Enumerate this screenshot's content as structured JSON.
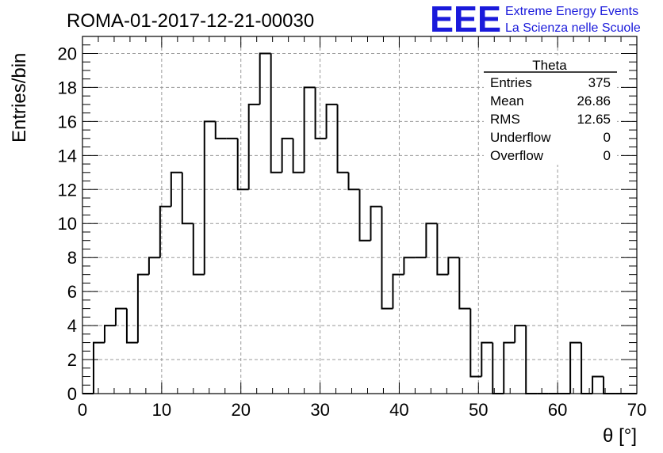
{
  "chart_data": {
    "type": "bar",
    "title": "ROMA-01-2017-12-21-00030",
    "xlabel": "θ [°]",
    "ylabel": "Entries/bin",
    "xlim": [
      0,
      70
    ],
    "ylim": [
      0,
      21
    ],
    "grid": true,
    "x_ticks": [
      "0",
      "10",
      "20",
      "30",
      "40",
      "50",
      "60",
      "70"
    ],
    "y_ticks": [
      "0",
      "2",
      "4",
      "6",
      "8",
      "10",
      "12",
      "14",
      "16",
      "18",
      "20"
    ],
    "bin_width": 1.4,
    "bin_start": 0,
    "values": [
      0,
      3,
      4,
      5,
      3,
      7,
      8,
      11,
      13,
      10,
      7,
      16,
      15,
      15,
      12,
      17,
      20,
      13,
      15,
      13,
      18,
      15,
      17,
      13,
      12,
      9,
      11,
      5,
      7,
      8,
      8,
      10,
      7,
      8,
      5,
      1,
      3,
      0,
      3,
      4,
      0,
      0,
      0,
      0,
      3,
      0,
      1,
      0,
      0,
      0
    ],
    "series_color": "#000000",
    "stats_box": {
      "name": "Theta",
      "rows": [
        {
          "label": "Entries",
          "value": "375"
        },
        {
          "label": "Mean",
          "value": "26.86"
        },
        {
          "label": "RMS",
          "value": "12.65"
        },
        {
          "label": "Underflow",
          "value": "0"
        },
        {
          "label": "Overflow",
          "value": "0"
        }
      ]
    }
  },
  "logo": {
    "mark": "EEE",
    "line1": "Extreme Energy Events",
    "line2": "La Scienza nelle Scuole",
    "color": "#1a1adb"
  }
}
